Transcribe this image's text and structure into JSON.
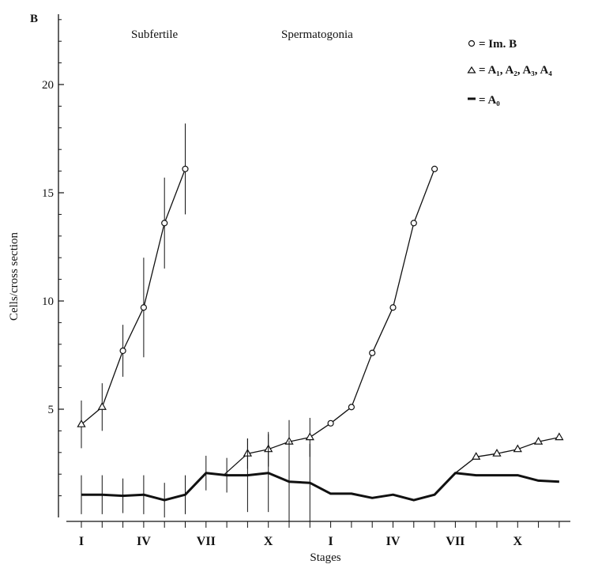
{
  "chart_data": {
    "type": "line",
    "panel_label": "B",
    "title_left": "Subfertile",
    "title_right": "Spermatogonia",
    "xlabel": "Stages",
    "ylabel": "Cells/cross section",
    "ylim": [
      0,
      23
    ],
    "y_ticks": [
      5,
      10,
      15,
      20
    ],
    "x_tick_labels": [
      {
        "stage": 1,
        "label": "I"
      },
      {
        "stage": 4,
        "label": "IV"
      },
      {
        "stage": 7,
        "label": "VII"
      },
      {
        "stage": 10,
        "label": "X"
      },
      {
        "stage": 13,
        "label": "I"
      },
      {
        "stage": 16,
        "label": "IV"
      },
      {
        "stage": 19,
        "label": "VII"
      },
      {
        "stage": 22,
        "label": "X"
      }
    ],
    "legend": [
      {
        "marker": "circle",
        "label": "= Im. B"
      },
      {
        "marker": "triangle",
        "label": "= A₁, A₂, A₃, A₄"
      },
      {
        "marker": "thick-line",
        "label": "= A₀"
      }
    ],
    "series": [
      {
        "marker": "triangle-then-circle",
        "x": [
          1,
          2,
          3,
          4,
          5,
          6
        ],
        "y": [
          4.3,
          5.1,
          7.7,
          9.7,
          13.6,
          16.1
        ],
        "markers": [
          "triangle",
          "triangle",
          "circle",
          "circle",
          "circle",
          "circle"
        ],
        "err": [
          1.1,
          1.1,
          1.2,
          2.3,
          2.1,
          2.1
        ]
      },
      {
        "marker": "triangle-then-circle",
        "x": [
          7.9,
          9,
          10,
          11,
          12,
          13,
          14,
          15,
          16,
          17,
          18
        ],
        "y": [
          2.0,
          2.95,
          3.15,
          3.5,
          3.7,
          4.35,
          5.1,
          7.6,
          9.7,
          13.6,
          16.1
        ],
        "markers": [
          "none",
          "triangle",
          "triangle",
          "triangle",
          "triangle",
          "circle",
          "circle",
          "circle",
          "circle",
          "circle",
          "circle"
        ],
        "err": [
          0,
          0.7,
          0.8,
          1.0,
          0.9,
          0,
          0,
          0,
          0,
          0,
          0
        ]
      },
      {
        "marker": "triangle",
        "x": [
          19,
          20,
          21,
          22,
          23,
          24
        ],
        "y": [
          2.05,
          2.8,
          2.95,
          3.15,
          3.5,
          3.7
        ],
        "markers": [
          "none",
          "triangle",
          "triangle",
          "triangle",
          "triangle",
          "triangle"
        ],
        "err": [
          0,
          0,
          0,
          0,
          0,
          0
        ]
      },
      {
        "marker": "thick-line",
        "x": [
          1,
          2,
          3,
          4,
          5,
          6,
          7,
          8,
          9,
          10,
          11,
          12,
          13,
          14,
          15,
          16,
          17,
          18,
          19,
          20,
          21,
          22,
          23,
          24
        ],
        "y": [
          1.05,
          1.05,
          1.0,
          1.05,
          0.8,
          1.05,
          2.05,
          1.95,
          1.95,
          2.05,
          1.65,
          1.6,
          1.1,
          1.1,
          0.9,
          1.05,
          0.8,
          1.05,
          2.05,
          1.95,
          1.95,
          1.95,
          1.7,
          1.65
        ],
        "err": [
          0.9,
          0.9,
          0.8,
          0.9,
          0.8,
          0.9,
          0.8,
          0.8,
          1.7,
          1.8,
          1.9,
          1.8,
          0,
          0,
          0,
          0,
          0,
          0,
          0,
          0,
          0,
          0,
          0,
          0
        ]
      }
    ]
  }
}
